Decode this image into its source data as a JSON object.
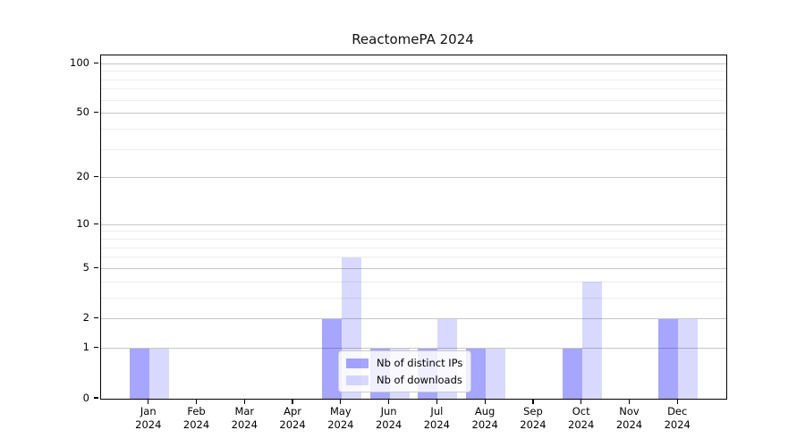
{
  "title": "ReactomePA 2024",
  "chart_data": {
    "type": "bar",
    "title": "ReactomePA 2024",
    "categories": [
      {
        "month": "Jan",
        "year": "2024"
      },
      {
        "month": "Feb",
        "year": "2024"
      },
      {
        "month": "Mar",
        "year": "2024"
      },
      {
        "month": "Apr",
        "year": "2024"
      },
      {
        "month": "May",
        "year": "2024"
      },
      {
        "month": "Jun",
        "year": "2024"
      },
      {
        "month": "Jul",
        "year": "2024"
      },
      {
        "month": "Aug",
        "year": "2024"
      },
      {
        "month": "Sep",
        "year": "2024"
      },
      {
        "month": "Oct",
        "year": "2024"
      },
      {
        "month": "Nov",
        "year": "2024"
      },
      {
        "month": "Dec",
        "year": "2024"
      }
    ],
    "series": [
      {
        "name": "Nb of distinct IPs",
        "color": "rgba(0,0,255,0.35)",
        "values": [
          1,
          0,
          0,
          0,
          2,
          1,
          1,
          1,
          0,
          1,
          0,
          2
        ]
      },
      {
        "name": "Nb of downloads",
        "color": "rgba(0,0,255,0.15)",
        "values": [
          1,
          0,
          0,
          0,
          6,
          1,
          2,
          1,
          0,
          4,
          0,
          2
        ]
      }
    ],
    "yscale": "log1p",
    "ylim": [
      0,
      112
    ],
    "yticks_major": [
      0,
      1,
      2,
      5,
      10,
      20,
      50,
      100
    ],
    "yticks_minor": [
      3,
      4,
      6,
      7,
      8,
      9,
      30,
      40,
      60,
      70,
      80,
      90
    ],
    "xlabel": "",
    "ylabel": "",
    "grid": true,
    "legend_position": "lower center"
  }
}
